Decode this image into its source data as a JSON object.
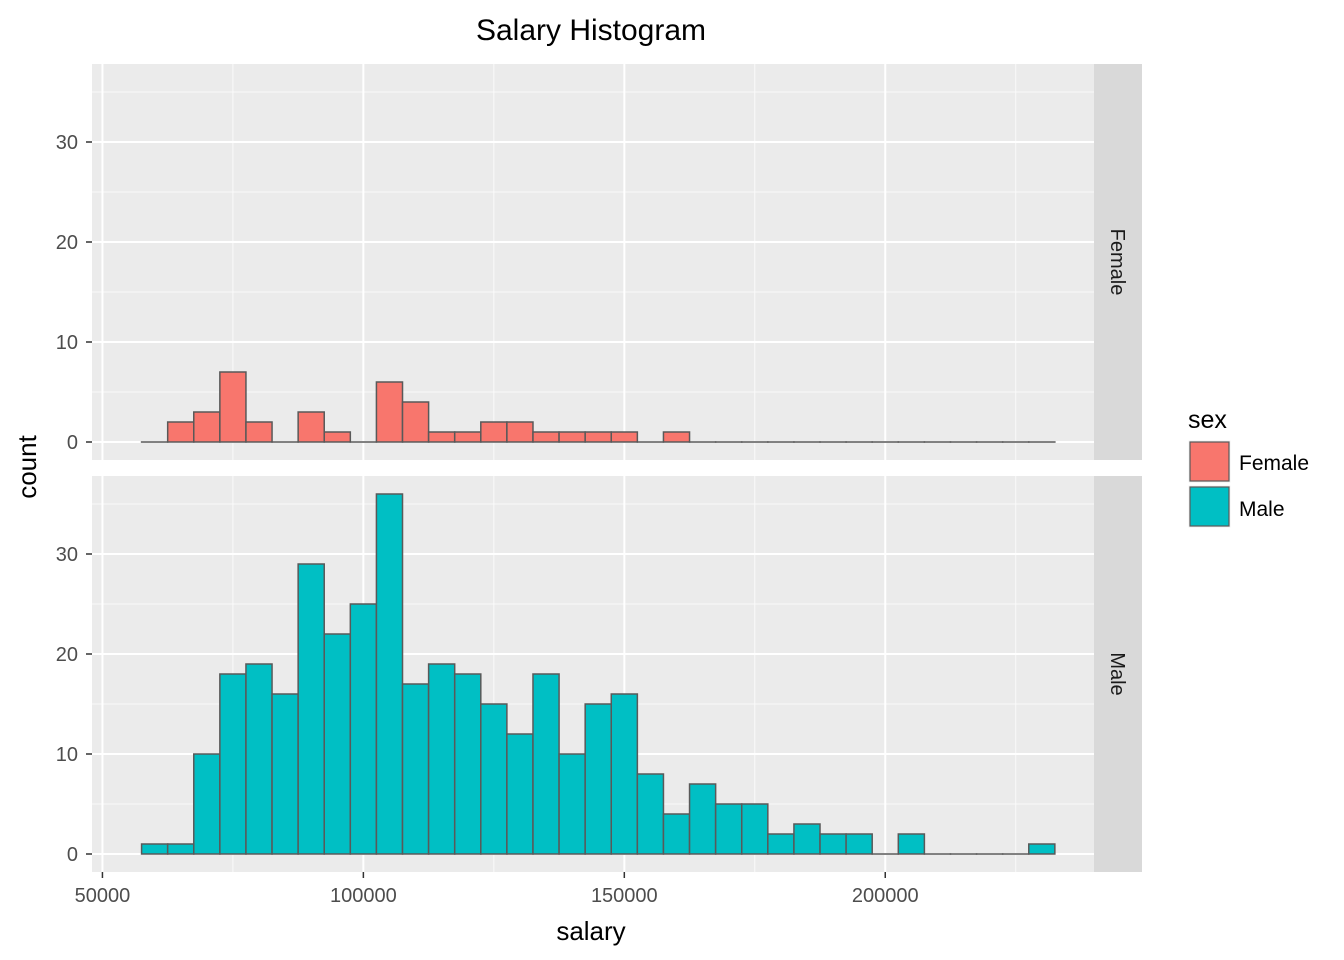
{
  "chart_data": {
    "type": "bar",
    "title": "Salary Histogram",
    "xlabel": "salary",
    "ylabel": "count",
    "xlim": [
      48000,
      240000
    ],
    "ylim": [
      -1.8,
      37.8
    ],
    "x_ticks": [
      50000,
      100000,
      150000,
      200000
    ],
    "y_ticks": [
      0,
      10,
      20,
      30
    ],
    "grid": true,
    "bin_start": 57500,
    "bin_width": 5000,
    "bin_count": 35,
    "legend": {
      "title": "sex",
      "position": "right",
      "entries": [
        {
          "label": "Female",
          "color": "#F8766D"
        },
        {
          "label": "Male",
          "color": "#00BFC4"
        }
      ]
    },
    "series": [
      {
        "name": "Female",
        "facet_label": "Female",
        "color": "#F8766D",
        "values": [
          0,
          2,
          3,
          7,
          2,
          0,
          3,
          1,
          0,
          6,
          4,
          1,
          1,
          2,
          2,
          1,
          1,
          1,
          1,
          0,
          1,
          0,
          0,
          0,
          0,
          0,
          0,
          0,
          0,
          0,
          0,
          0,
          0,
          0,
          0
        ]
      },
      {
        "name": "Male",
        "facet_label": "Male",
        "color": "#00BFC4",
        "values": [
          1,
          1,
          10,
          18,
          19,
          16,
          29,
          22,
          25,
          36,
          17,
          19,
          18,
          15,
          12,
          18,
          10,
          15,
          16,
          8,
          4,
          7,
          5,
          5,
          2,
          3,
          2,
          2,
          0,
          2,
          0,
          0,
          0,
          0,
          1
        ]
      }
    ]
  },
  "colors": {
    "panel_background": "#EBEBEB",
    "strip_background": "#D9D9D9",
    "bar_outline": "#595959",
    "grid_major": "#FFFFFF"
  }
}
